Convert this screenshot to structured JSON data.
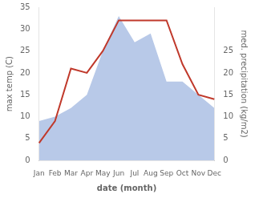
{
  "chart_data": {
    "type": "line",
    "xlabel": "date (month)",
    "ylabel": "max temp (C)",
    "y2label": "med. precipitation (kg/m2)",
    "categories": [
      "Jan",
      "Feb",
      "Mar",
      "Apr",
      "May",
      "Jun",
      "Jul",
      "Aug",
      "Sep",
      "Oct",
      "Nov",
      "Dec"
    ],
    "series": [
      {
        "type": "area",
        "color": "#b8c9e8",
        "axis": "y2",
        "values": [
          9,
          10,
          12,
          15,
          25,
          33,
          27,
          29,
          18,
          18,
          15,
          12
        ]
      },
      {
        "type": "line",
        "color": "#c0392b",
        "values": [
          4,
          9,
          21,
          20,
          25,
          32,
          32,
          32,
          32,
          22,
          15,
          14
        ]
      }
    ],
    "ylim": [
      0,
      35
    ],
    "yticks": [
      0,
      5,
      10,
      15,
      20,
      25,
      30,
      35
    ],
    "y2lim": [
      0,
      35
    ],
    "y2ticks": [
      0,
      5,
      10,
      15,
      20,
      25
    ],
    "grid": false
  }
}
